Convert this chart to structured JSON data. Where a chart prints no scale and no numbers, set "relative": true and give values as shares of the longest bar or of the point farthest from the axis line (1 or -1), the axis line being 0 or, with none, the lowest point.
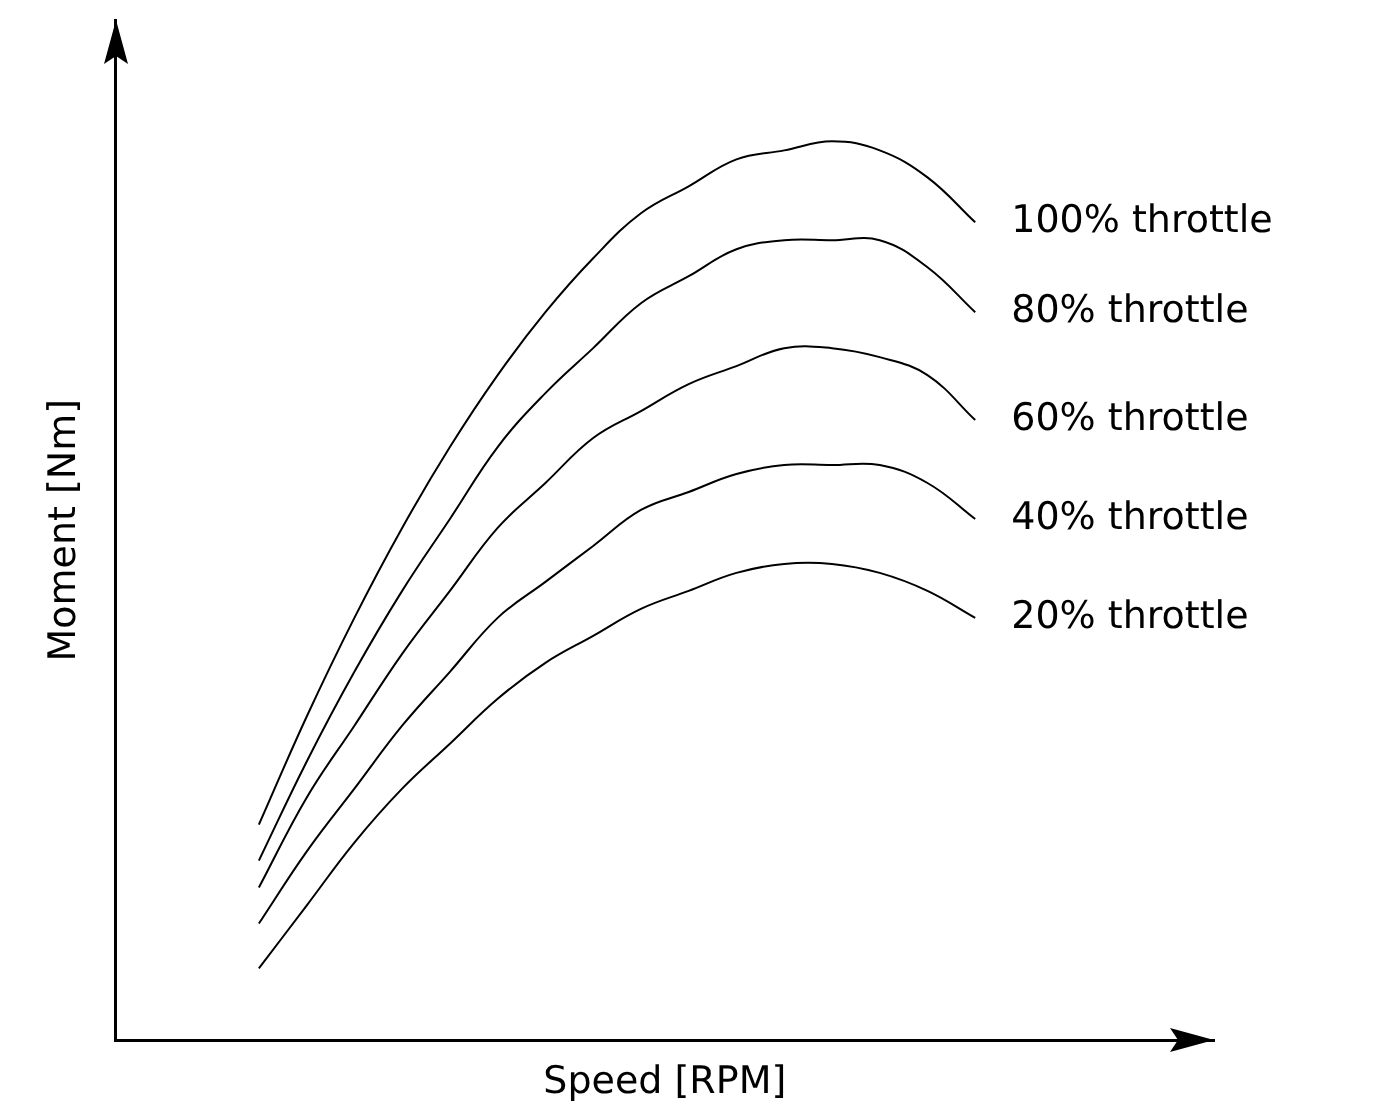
{
  "chart_data": {
    "type": "line",
    "relative": true,
    "xlabel": "Speed [RPM]",
    "ylabel": "Moment [Nm]",
    "legend": false,
    "grid": false,
    "marker": "none",
    "line_style": "solid",
    "categories": [
      null,
      null,
      null,
      null,
      null,
      null,
      null,
      null,
      null,
      null,
      null,
      null,
      null,
      null,
      null,
      null,
      null,
      null,
      null,
      null,
      null,
      null,
      null,
      null
    ],
    "series": [
      {
        "name": "100% throttle",
        "color": "#000000",
        "values": [
          null,
          null,
          null,
          0.24,
          0.36,
          0.47,
          0.57,
          0.66,
          0.74,
          0.81,
          0.87,
          0.92,
          0.95,
          0.98,
          0.99,
          1,
          0.99,
          0.96,
          0.91,
          null,
          null,
          null,
          null,
          null
        ]
      },
      {
        "name": "80% throttle",
        "color": "#000000",
        "values": [
          null,
          null,
          null,
          0.2,
          0.31,
          0.41,
          0.5,
          0.58,
          0.66,
          0.72,
          0.77,
          0.82,
          0.85,
          0.88,
          0.89,
          0.89,
          0.89,
          0.86,
          0.81,
          null,
          null,
          null,
          null,
          null
        ]
      },
      {
        "name": "60% throttle",
        "color": "#000000",
        "values": [
          null,
          null,
          null,
          0.17,
          0.27,
          0.35,
          0.43,
          0.5,
          0.57,
          0.62,
          0.67,
          0.7,
          0.73,
          0.75,
          0.77,
          0.77,
          0.76,
          0.74,
          0.69,
          null,
          null,
          null,
          null,
          null
        ]
      },
      {
        "name": "40% throttle",
        "color": "#000000",
        "values": [
          null,
          null,
          null,
          0.13,
          0.21,
          0.28,
          0.35,
          0.41,
          0.47,
          0.51,
          0.55,
          0.59,
          0.61,
          0.63,
          0.64,
          0.64,
          0.64,
          0.62,
          0.58,
          null,
          null,
          null,
          null,
          null
        ]
      },
      {
        "name": "20% throttle",
        "color": "#000000",
        "values": [
          null,
          null,
          null,
          0.08,
          0.15,
          0.22,
          0.28,
          0.33,
          0.38,
          0.42,
          0.45,
          0.48,
          0.5,
          0.52,
          0.53,
          0.53,
          0.52,
          0.5,
          0.47,
          null,
          null,
          null,
          null,
          null
        ]
      }
    ]
  }
}
